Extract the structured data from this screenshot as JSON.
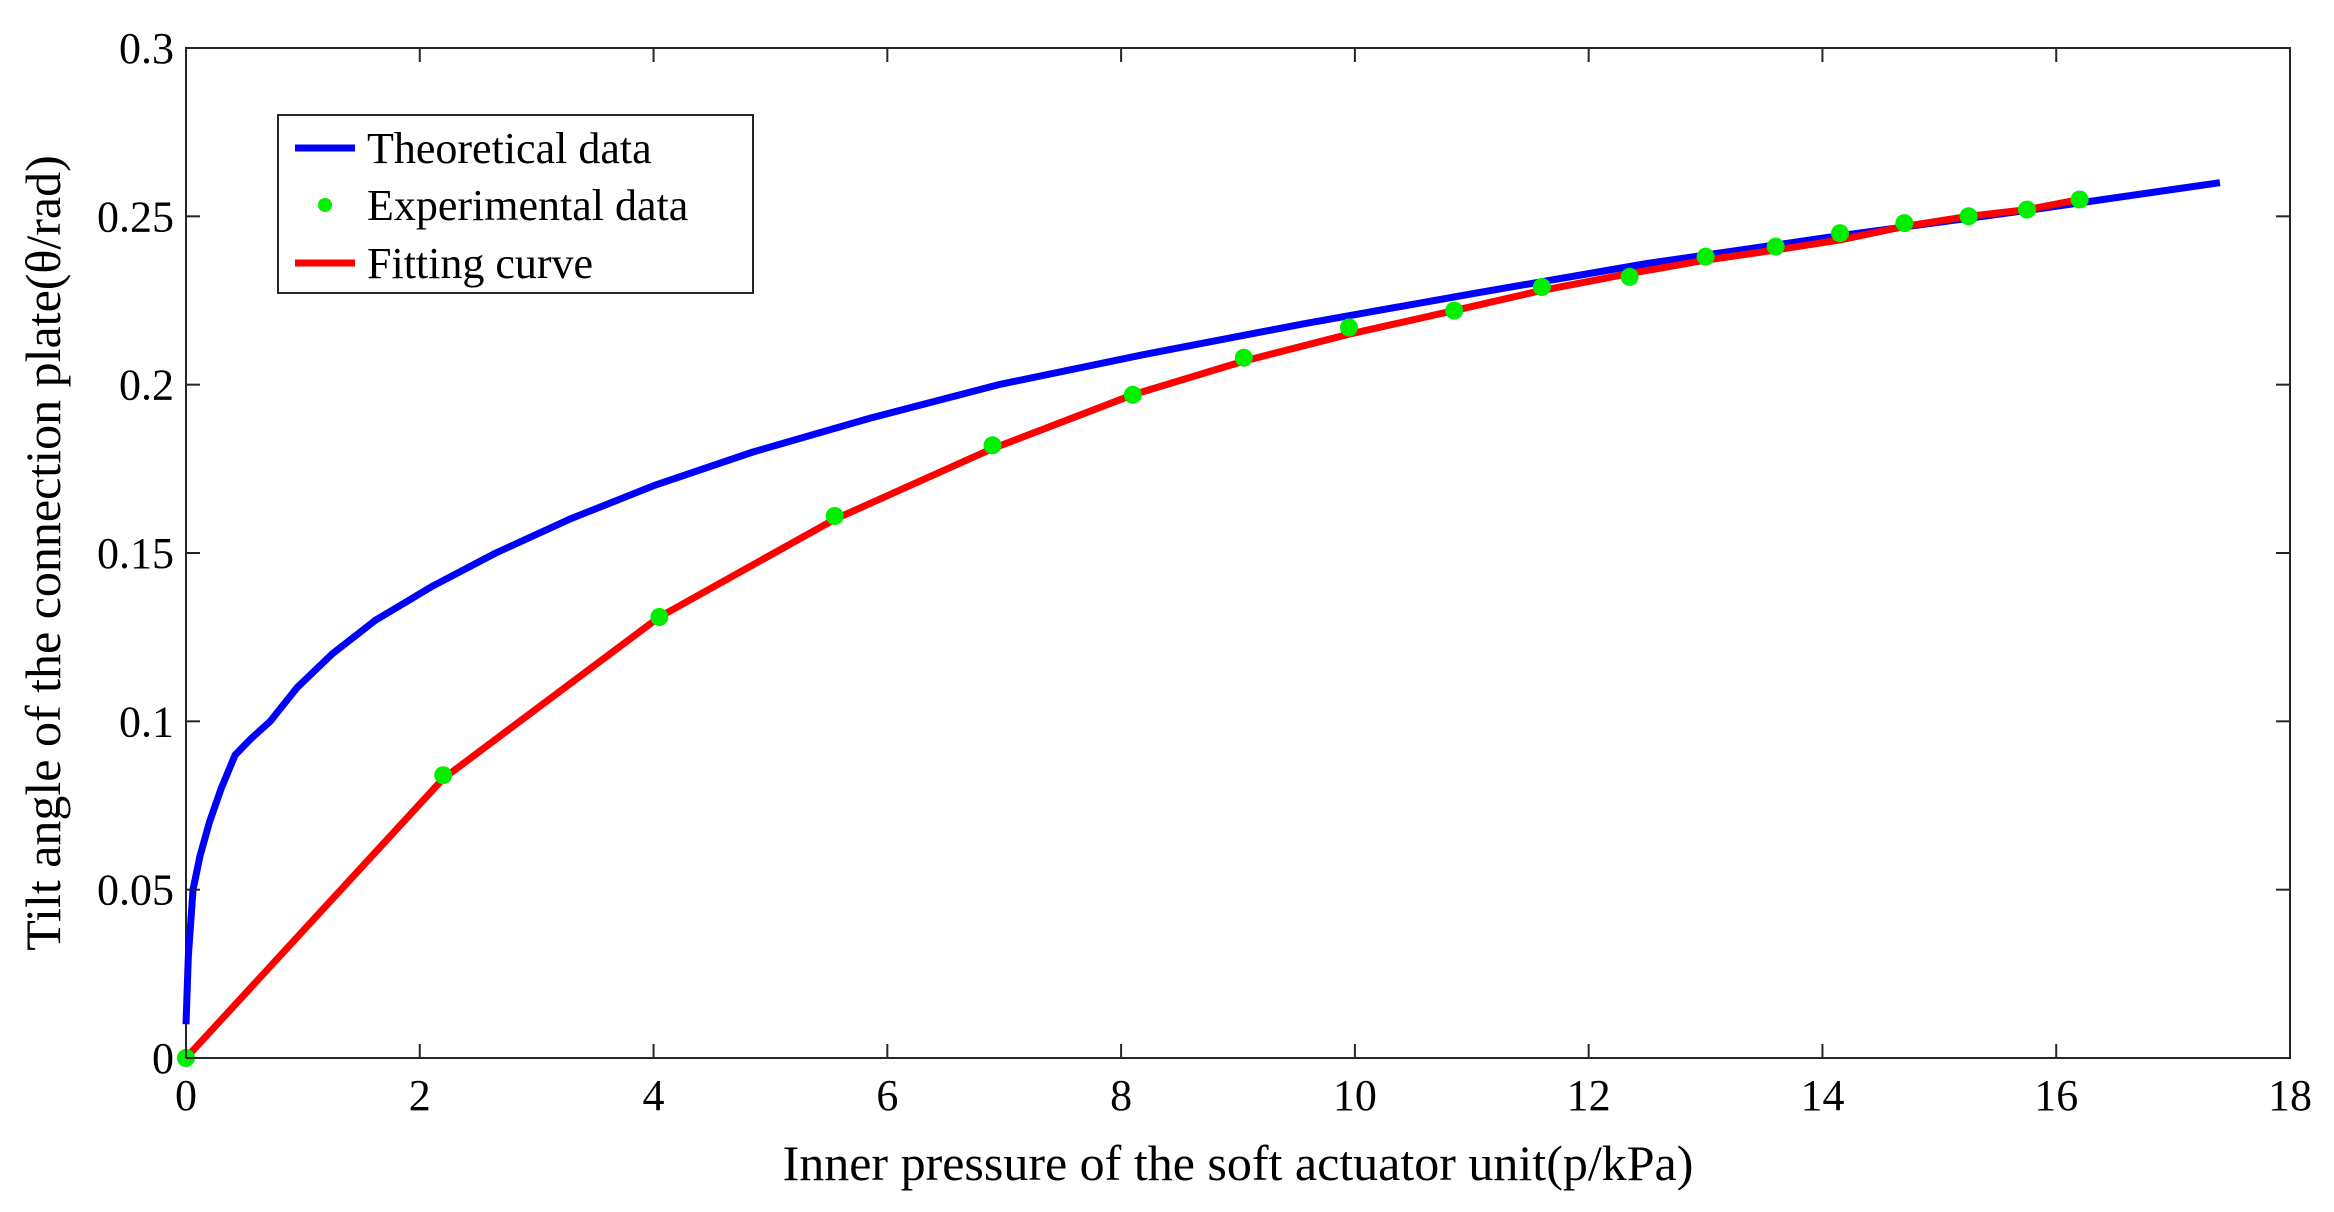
{
  "chart_data": {
    "type": "line",
    "title": "",
    "xlabel": "Inner pressure of the soft actuator unit(p/kPa)",
    "ylabel": "Tilt angle of the connection plate(θ/rad)",
    "xlim": [
      0,
      18
    ],
    "ylim": [
      0,
      0.3
    ],
    "xticks": [
      0,
      2,
      4,
      6,
      8,
      10,
      12,
      14,
      16,
      18
    ],
    "xtick_labels": [
      "0",
      "2",
      "4",
      "6",
      "8",
      "10",
      "12",
      "14",
      "16",
      "18"
    ],
    "yticks": [
      0,
      0.05,
      0.1,
      0.15,
      0.2,
      0.25,
      0.3
    ],
    "ytick_labels": [
      "0",
      "0.05",
      "0.1",
      "0.15",
      "0.2",
      "0.25",
      "0.3"
    ],
    "grid": false,
    "legend_position": "top-left",
    "series": [
      {
        "name": "Theoretical data",
        "kind": "line",
        "color": "#0000ff",
        "x": [
          0.0,
          0.02,
          0.06,
          0.12,
          0.2,
          0.3,
          0.42,
          0.56,
          0.72,
          0.95,
          1.25,
          1.62,
          2.1,
          2.65,
          3.28,
          4.0,
          4.85,
          5.85,
          6.95,
          8.2,
          9.55,
          11.0,
          12.5,
          14.1,
          15.8,
          17.4
        ],
        "y": [
          0.01,
          0.03,
          0.05,
          0.06,
          0.07,
          0.08,
          0.09,
          0.095,
          0.1,
          0.11,
          0.12,
          0.13,
          0.14,
          0.15,
          0.16,
          0.17,
          0.18,
          0.19,
          0.2,
          0.209,
          0.218,
          0.227,
          0.236,
          0.244,
          0.252,
          0.26
        ]
      },
      {
        "name": "Experimental data",
        "kind": "scatter",
        "color": "#00ee00",
        "x": [
          0.0,
          2.2,
          4.05,
          5.55,
          6.9,
          8.1,
          9.05,
          9.95,
          10.85,
          11.6,
          12.35,
          13.0,
          13.6,
          14.15,
          14.7,
          15.25,
          15.75,
          16.2
        ],
        "y": [
          0.0,
          0.084,
          0.131,
          0.161,
          0.182,
          0.197,
          0.208,
          0.217,
          0.222,
          0.229,
          0.232,
          0.238,
          0.241,
          0.245,
          0.248,
          0.25,
          0.252,
          0.255
        ]
      },
      {
        "name": "Fitting curve",
        "kind": "line",
        "color": "#ff0000",
        "x": [
          0.0,
          2.2,
          4.05,
          5.55,
          6.9,
          8.1,
          9.05,
          9.95,
          10.85,
          11.6,
          12.35,
          13.0,
          13.6,
          14.15,
          14.7,
          15.25,
          15.75,
          16.2
        ],
        "y": [
          0.0,
          0.083,
          0.131,
          0.16,
          0.181,
          0.197,
          0.207,
          0.215,
          0.222,
          0.228,
          0.233,
          0.237,
          0.24,
          0.243,
          0.247,
          0.25,
          0.252,
          0.255
        ]
      }
    ]
  }
}
